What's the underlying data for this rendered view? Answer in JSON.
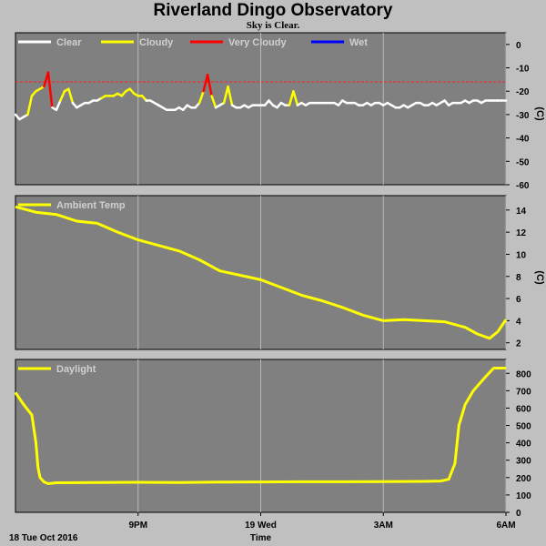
{
  "chart_data": [
    {
      "type": "line",
      "panel": "sky",
      "title": "Riverland Dingo Observatory",
      "subtitle": "Sky is Clear.",
      "ylabel": "(C)",
      "ylim": [
        -60,
        5
      ],
      "yticks": [
        0,
        -10,
        -20,
        -30,
        -40,
        -50,
        -60
      ],
      "threshold": -16,
      "legend": [
        {
          "name": "Clear",
          "color": "#ffffff"
        },
        {
          "name": "Cloudy",
          "color": "#ffff00"
        },
        {
          "name": "Very Cloudy",
          "color": "#ff0000"
        },
        {
          "name": "Wet",
          "color": "#0000ff"
        }
      ],
      "x": [
        0.0,
        0.1,
        0.2,
        0.3,
        0.4,
        0.5,
        0.6,
        0.7,
        0.8,
        0.9,
        1.0,
        1.1,
        1.2,
        1.3,
        1.4,
        1.5,
        1.6,
        1.7,
        1.8,
        1.9,
        2.0,
        2.1,
        2.2,
        2.3,
        2.4,
        2.5,
        2.6,
        2.7,
        2.8,
        2.9,
        3.0,
        3.1,
        3.2,
        3.3,
        3.4,
        3.5,
        3.6,
        3.7,
        3.8,
        3.9,
        4.0,
        4.1,
        4.2,
        4.3,
        4.4,
        4.5,
        4.6,
        4.7,
        4.8,
        4.9,
        5.0,
        5.1,
        5.2,
        5.3,
        5.4,
        5.5,
        5.6,
        5.7,
        5.8,
        5.9,
        6.0,
        6.1,
        6.2,
        6.3,
        6.4,
        6.5,
        6.6,
        6.7,
        6.8,
        6.9,
        7.0,
        7.1,
        7.2,
        7.3,
        7.4,
        7.5,
        7.6,
        7.7,
        7.8,
        7.9,
        8.0,
        8.1,
        8.2,
        8.3,
        8.4,
        8.5,
        8.6,
        8.7,
        8.8,
        8.9,
        9.0,
        9.1,
        9.2,
        9.3,
        9.4,
        9.5,
        9.6,
        9.7,
        9.8,
        9.9,
        10.0,
        10.1,
        10.2,
        10.3,
        10.4,
        10.5,
        10.6,
        10.7,
        10.8,
        10.9,
        11.0,
        11.1,
        11.2,
        11.3,
        11.4,
        11.5,
        11.6,
        11.7,
        11.8,
        11.9,
        12.0
      ],
      "series": [
        {
          "values": [
            -30,
            -32,
            -31,
            -30,
            -22,
            -20,
            -19,
            -18,
            -12,
            -27,
            -28,
            -24,
            -20,
            -19,
            -25,
            -27,
            -26,
            -25,
            -25,
            -24,
            -24,
            -23,
            -22,
            -22,
            -22,
            -21,
            -22,
            -20,
            -19,
            -21,
            -22,
            -22,
            -24,
            -24,
            -25,
            -26,
            -27,
            -28,
            -28,
            -28,
            -27,
            -28,
            -26,
            -27,
            -27,
            -25,
            -20,
            -13,
            -22,
            -27,
            -26,
            -25,
            -18,
            -26,
            -27,
            -27,
            -26,
            -27,
            -26,
            -26,
            -26,
            -26,
            -24,
            -26,
            -27,
            -25,
            -26,
            -26,
            -20,
            -26,
            -25,
            -26,
            -25,
            -25,
            -25,
            -25,
            -25,
            -25,
            -25,
            -26,
            -24,
            -25,
            -25,
            -25,
            -26,
            -26,
            -25,
            -26,
            -25,
            -25,
            -26,
            -25,
            -26,
            -27,
            -27,
            -26,
            -27,
            -26,
            -25,
            -25,
            -26,
            -26,
            -25,
            -26,
            -25,
            -24,
            -26,
            -25,
            -25,
            -25,
            -24,
            -25,
            -24,
            -24,
            -25,
            -24,
            -24,
            -24,
            -24,
            -24,
            -24
          ]
        }
      ]
    },
    {
      "type": "line",
      "panel": "ambient",
      "ylabel": "(C)",
      "ylim": [
        1.4,
        15.3
      ],
      "yticks": [
        2,
        4,
        6,
        8,
        10,
        12,
        14
      ],
      "legend": [
        {
          "name": "Ambient Temp",
          "color": "#ffff00"
        }
      ],
      "x": [
        0,
        0.5,
        1,
        1.5,
        2,
        2.5,
        3,
        3.5,
        4,
        4.5,
        5,
        5.5,
        6,
        6.5,
        7,
        7.5,
        8,
        8.5,
        9,
        9.5,
        10,
        10.5,
        11,
        11.3,
        11.6,
        11.8,
        12
      ],
      "series": [
        {
          "values": [
            14.3,
            13.8,
            13.6,
            13.0,
            12.8,
            12.0,
            11.3,
            10.8,
            10.3,
            9.5,
            8.5,
            8.1,
            7.7,
            7.0,
            6.3,
            5.8,
            5.2,
            4.5,
            4.0,
            4.1,
            4.0,
            3.9,
            3.4,
            2.8,
            2.4,
            3.0,
            4.1
          ]
        }
      ]
    },
    {
      "type": "line",
      "panel": "daylight",
      "ylim": [
        0,
        880
      ],
      "yticks": [
        0,
        100,
        200,
        300,
        400,
        500,
        600,
        700,
        800
      ],
      "legend": [
        {
          "name": "Daylight",
          "color": "#ffff00"
        }
      ],
      "x": [
        0,
        0.2,
        0.4,
        0.5,
        0.55,
        0.6,
        0.7,
        0.8,
        1.0,
        2,
        3,
        4,
        5,
        6,
        7,
        8,
        9,
        10,
        10.4,
        10.6,
        10.75,
        10.85,
        11,
        11.2,
        11.5,
        11.7,
        12
      ],
      "series": [
        {
          "values": [
            690,
            620,
            560,
            400,
            260,
            200,
            175,
            165,
            170,
            172,
            173,
            172,
            174,
            175,
            176,
            176,
            177,
            178,
            180,
            190,
            280,
            500,
            620,
            700,
            780,
            830,
            830
          ]
        }
      ],
      "xticks": [
        {
          "x": 3,
          "label": "9PM"
        },
        {
          "x": 6,
          "label": "19 Wed"
        },
        {
          "x": 9,
          "label": "3AM"
        },
        {
          "x": 12,
          "label": "6AM"
        }
      ],
      "xstart_label": "18 Tue Oct 2016",
      "xlabel": "Time"
    }
  ]
}
